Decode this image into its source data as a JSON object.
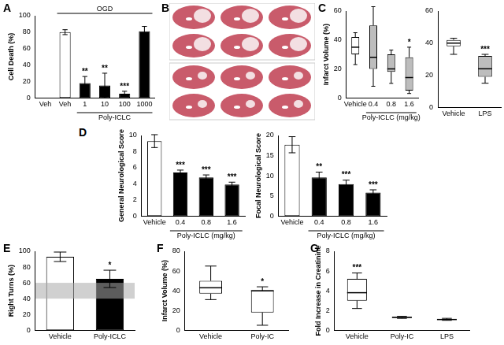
{
  "chart_data": [
    {
      "panel": "A",
      "type": "bar",
      "categories": [
        "Veh",
        "Veh",
        "1",
        "10",
        "100",
        "1000"
      ],
      "values": [
        0,
        80,
        18,
        15,
        5,
        81
      ],
      "errors": [
        0,
        3,
        8,
        15,
        3,
        6
      ],
      "colors": [
        "#ffffff",
        "#ffffff",
        "#000000",
        "#000000",
        "#000000",
        "#000000"
      ],
      "annotations": [
        null,
        null,
        "**",
        "**",
        "***",
        null
      ],
      "y_label": "Cell Death (%)",
      "group_label": "OGD",
      "x_label": "Poly-ICLC",
      "ylim": [
        0,
        100
      ],
      "yticks": [
        0,
        20,
        40,
        60,
        80,
        100
      ],
      "grid": false
    },
    {
      "panel": "C",
      "type": "box",
      "categories": [
        "Vehicle",
        "0.4",
        "0.8",
        "1.6"
      ],
      "boxes": [
        {
          "min": 23,
          "q1": 30,
          "median": 35,
          "q3": 42,
          "max": 45
        },
        {
          "min": 8,
          "q1": 20,
          "median": 28,
          "q3": 50,
          "max": 63
        },
        {
          "min": 10,
          "q1": 18,
          "median": 20,
          "q3": 30,
          "max": 33
        },
        {
          "min": 3,
          "q1": 5,
          "median": 14,
          "q3": 28,
          "max": 35
        }
      ],
      "colors": [
        "#ffffff",
        "#bdbdbd",
        "#bdbdbd",
        "#bdbdbd"
      ],
      "annotations": [
        null,
        null,
        null,
        "*"
      ],
      "y_label": "Infarct Volume (%)",
      "x_label": "Poly-ICLC (mg/kg)",
      "ylim": [
        0,
        60
      ],
      "yticks": [
        0,
        20,
        40,
        60
      ],
      "grid": false
    },
    {
      "type": "box",
      "categories": [
        "Vehicle",
        "LPS"
      ],
      "boxes": [
        {
          "min": 33,
          "q1": 38,
          "median": 40,
          "q3": 42,
          "max": 43
        },
        {
          "min": 15,
          "q1": 19,
          "median": 24,
          "q3": 32,
          "max": 33
        }
      ],
      "colors": [
        "#ffffff",
        "#bdbdbd"
      ],
      "annotations": [
        null,
        "***"
      ],
      "ylim": [
        0,
        60
      ],
      "yticks": [
        0,
        20,
        40,
        60
      ],
      "grid": false
    },
    {
      "panel": "D",
      "type": "bar",
      "categories": [
        "Vehicle",
        "0.4",
        "0.8",
        "1.6"
      ],
      "values": [
        9.3,
        5.4,
        4.8,
        3.9
      ],
      "errors": [
        0.8,
        0.3,
        0.3,
        0.3
      ],
      "colors": [
        "#ffffff",
        "#000000",
        "#000000",
        "#000000"
      ],
      "annotations": [
        null,
        "***",
        "***",
        "***"
      ],
      "y_label": "General Neurological Score",
      "x_label": "Poly-ICLC (mg/kg)",
      "ylim": [
        0,
        10
      ],
      "yticks": [
        0,
        2,
        4,
        6,
        8,
        10
      ],
      "grid": false
    },
    {
      "type": "bar",
      "categories": [
        "Vehicle",
        "0.4",
        "0.8",
        "1.6"
      ],
      "values": [
        17.7,
        9.6,
        7.9,
        5.8
      ],
      "errors": [
        2,
        1.3,
        1,
        0.7
      ],
      "colors": [
        "#ffffff",
        "#000000",
        "#000000",
        "#000000"
      ],
      "annotations": [
        null,
        "**",
        "***",
        "***"
      ],
      "y_label": "Focal Neurological Score",
      "x_label": "Poly-ICLC (mg/kg)",
      "ylim": [
        0,
        20
      ],
      "yticks": [
        0,
        5,
        10,
        15,
        20
      ],
      "grid": false
    },
    {
      "panel": "E",
      "type": "bar",
      "categories": [
        "Vehicle",
        "Poly-ICLC"
      ],
      "values": [
        93,
        65
      ],
      "errors": [
        6,
        11
      ],
      "colors": [
        "#ffffff",
        "#000000"
      ],
      "annotations": [
        null,
        "*"
      ],
      "band": [
        40,
        60
      ],
      "y_label": "Right Turns (%)",
      "ylim": [
        0,
        100
      ],
      "yticks": [
        0,
        20,
        40,
        60,
        80,
        100
      ],
      "grid": false
    },
    {
      "panel": "F",
      "type": "box",
      "categories": [
        "Vehicle",
        "Poly-IC"
      ],
      "boxes": [
        {
          "min": 31,
          "q1": 37,
          "median": 43,
          "q3": 50,
          "max": 65
        },
        {
          "min": 5,
          "q1": 18,
          "median": 40,
          "q3": 40,
          "max": 44
        }
      ],
      "colors": [
        "#ffffff",
        "#ffffff"
      ],
      "annotations": [
        null,
        "*"
      ],
      "y_label": "Infarct Volume (%)",
      "ylim": [
        0,
        80
      ],
      "yticks": [
        0,
        20,
        40,
        60,
        80
      ],
      "grid": false
    },
    {
      "panel": "G",
      "type": "box",
      "categories": [
        "Vehicle",
        "Poly-IC",
        "LPS"
      ],
      "boxes": [
        {
          "min": 2.2,
          "q1": 3,
          "median": 3.8,
          "q3": 5.2,
          "max": 5.8
        },
        {
          "min": 1.2,
          "q1": 1.25,
          "median": 1.3,
          "q3": 1.35,
          "max": 1.4
        },
        {
          "min": 1,
          "q1": 1.05,
          "median": 1.08,
          "q3": 1.12,
          "max": 1.2
        }
      ],
      "colors": [
        "#ffffff",
        "#000000",
        "#000000"
      ],
      "annotations": [
        "***",
        null,
        null
      ],
      "y_label": "Fold Increase in Creatinine",
      "ylim": [
        0,
        8
      ],
      "yticks": [
        0,
        2,
        4,
        6,
        8
      ],
      "grid": false
    }
  ],
  "image_panel": {
    "panel": "B"
  }
}
